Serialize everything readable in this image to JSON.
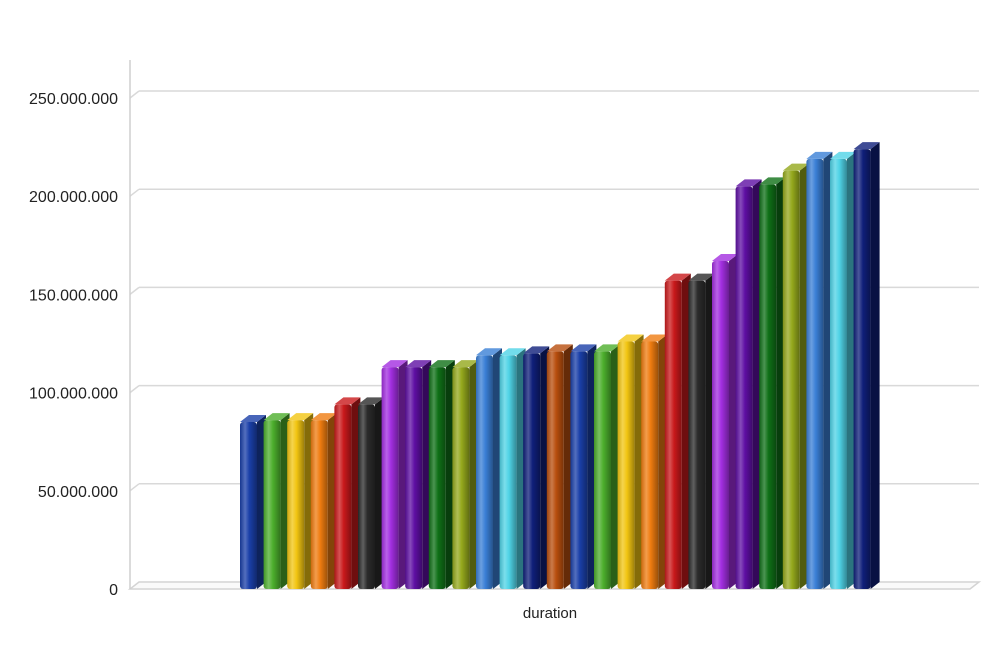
{
  "chart_data": {
    "type": "bar",
    "categories": [
      "duration"
    ],
    "ylim": [
      0,
      250000000
    ],
    "y_ticks": [
      0,
      50000000,
      100000000,
      150000000,
      200000000,
      250000000
    ],
    "y_tick_labels": [
      "0",
      "50.000.000",
      "100.000.000",
      "150.000.000",
      "200.000.000",
      "250.000.000"
    ],
    "grid": true,
    "legend": "none",
    "style": "3d-bars",
    "series": [
      {
        "values": [
          85000000
        ],
        "color": "#1a3fa8"
      },
      {
        "values": [
          86000000
        ],
        "color": "#4cae2c"
      },
      {
        "values": [
          86000000
        ],
        "color": "#f2c511"
      },
      {
        "values": [
          86000000
        ],
        "color": "#ef7c10"
      },
      {
        "values": [
          94000000
        ],
        "color": "#c9191b"
      },
      {
        "values": [
          94000000
        ],
        "color": "#2b2b2b"
      },
      {
        "values": [
          113000000
        ],
        "color": "#a22ee0"
      },
      {
        "values": [
          113000000
        ],
        "color": "#5e0fa3"
      },
      {
        "values": [
          113000000
        ],
        "color": "#0f7017"
      },
      {
        "values": [
          113000000
        ],
        "color": "#94a81c"
      },
      {
        "values": [
          119000000
        ],
        "color": "#3a7fd6"
      },
      {
        "values": [
          119000000
        ],
        "color": "#4fd3e6"
      },
      {
        "values": [
          120000000
        ],
        "color": "#0f1f7a"
      },
      {
        "values": [
          121000000
        ],
        "color": "#b84e0e"
      },
      {
        "values": [
          121000000
        ],
        "color": "#1a3fa8"
      },
      {
        "values": [
          121000000
        ],
        "color": "#4cae2c"
      },
      {
        "values": [
          126000000
        ],
        "color": "#f2c511"
      },
      {
        "values": [
          126000000
        ],
        "color": "#ef7c10"
      },
      {
        "values": [
          157000000
        ],
        "color": "#c9191b"
      },
      {
        "values": [
          157000000
        ],
        "color": "#2b2b2b"
      },
      {
        "values": [
          167000000
        ],
        "color": "#a22ee0"
      },
      {
        "values": [
          205000000
        ],
        "color": "#5e0fa3"
      },
      {
        "values": [
          206000000
        ],
        "color": "#0f7017"
      },
      {
        "values": [
          213000000
        ],
        "color": "#94a81c"
      },
      {
        "values": [
          219000000
        ],
        "color": "#3a7fd6"
      },
      {
        "values": [
          219000000
        ],
        "color": "#4fd3e6"
      },
      {
        "values": [
          224000000
        ],
        "color": "#0f1f7a"
      }
    ]
  }
}
